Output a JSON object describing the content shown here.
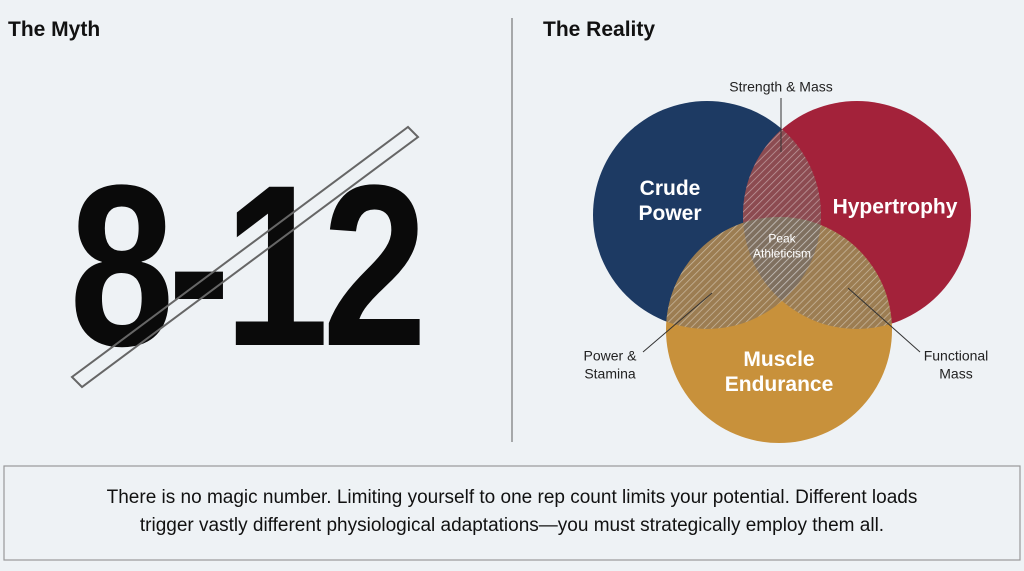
{
  "myth": {
    "title": "The Myth",
    "number": "8-12"
  },
  "reality": {
    "title": "The Reality",
    "circles": [
      {
        "label": [
          "Crude",
          "Power"
        ],
        "color": "#1d3a63"
      },
      {
        "label": [
          "Hypertrophy"
        ],
        "color": "#a3223a"
      },
      {
        "label": [
          "Muscle",
          "Endurance"
        ],
        "color": "#c8913b"
      }
    ],
    "overlaps": {
      "center": [
        "Peak",
        "Athleticism"
      ],
      "top": [
        "Strength & Mass"
      ],
      "left": [
        "Power &",
        "Stamina"
      ],
      "right": [
        "Functional",
        "Mass"
      ]
    }
  },
  "footer": {
    "lines": [
      "There is no magic number. Limiting yourself to one rep count limits your potential. Different loads",
      "trigger vastly different physiological adaptations—you must strategically employ them all."
    ]
  }
}
